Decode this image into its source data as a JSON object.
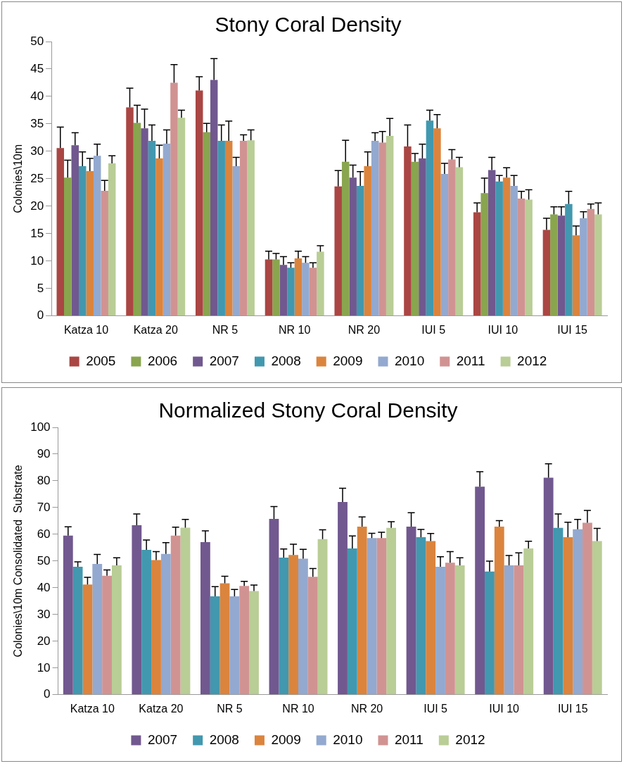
{
  "chart_data": [
    {
      "type": "bar",
      "title": "Stony Coral Density",
      "ylabel": "Colonies\\10m",
      "categories": [
        "Katza 10",
        "Katza 20",
        "NR 5",
        "NR 10",
        "NR 20",
        "IUI 5",
        "IUI 10",
        "IUI 15"
      ],
      "ylim": [
        0,
        50
      ],
      "yticks": [
        0,
        5,
        10,
        15,
        20,
        25,
        30,
        35,
        40,
        45,
        50
      ],
      "grid": false,
      "legend": "bottom",
      "series": [
        {
          "name": "2005",
          "color": "#aa4643",
          "values": [
            30.6,
            38.0,
            41.1,
            10.3,
            23.6,
            30.9,
            18.9,
            15.7
          ],
          "errors": [
            [
              30.6,
              34.4
            ],
            [
              38.0,
              41.5
            ],
            [
              41.1,
              43.6
            ],
            [
              10.3,
              11.8
            ],
            [
              23.6,
              26.5
            ],
            [
              30.9,
              34.8
            ],
            [
              18.9,
              20.6
            ],
            [
              15.7,
              17.8
            ]
          ]
        },
        {
          "name": "2006",
          "color": "#89a54e",
          "values": [
            25.2,
            35.2,
            33.5,
            10.3,
            28.1,
            28.1,
            22.4,
            18.5
          ],
          "errors": [
            [
              25.2,
              28.4
            ],
            [
              35.2,
              38.4
            ],
            [
              33.5,
              35.1
            ],
            [
              10.3,
              11.4
            ],
            [
              28.1,
              32.0
            ],
            [
              28.1,
              29.6
            ],
            [
              22.4,
              25.1
            ],
            [
              18.5,
              19.9
            ]
          ]
        },
        {
          "name": "2007",
          "color": "#71588f",
          "values": [
            31.1,
            34.2,
            43.0,
            9.3,
            25.2,
            28.7,
            26.6,
            18.3
          ],
          "errors": [
            [
              31.1,
              33.4
            ],
            [
              34.2,
              37.7
            ],
            [
              43.0,
              46.9
            ],
            [
              9.3,
              10.8
            ],
            [
              25.2,
              27.5
            ],
            [
              28.7,
              31.3
            ],
            [
              26.6,
              28.9
            ],
            [
              18.3,
              19.9
            ]
          ]
        },
        {
          "name": "2008",
          "color": "#4198af",
          "values": [
            27.3,
            31.9,
            31.9,
            8.8,
            23.7,
            35.6,
            24.5,
            20.4
          ],
          "errors": [
            [
              27.3,
              29.9
            ],
            [
              31.9,
              34.8
            ],
            [
              31.9,
              34.8
            ],
            [
              8.8,
              9.7
            ],
            [
              23.7,
              26.3
            ],
            [
              35.6,
              37.5
            ],
            [
              24.5,
              25.6
            ],
            [
              20.4,
              22.7
            ]
          ]
        },
        {
          "name": "2009",
          "color": "#db843d",
          "values": [
            26.4,
            28.7,
            31.9,
            10.5,
            27.3,
            34.2,
            25.2,
            14.7
          ],
          "errors": [
            [
              26.4,
              28.7
            ],
            [
              28.7,
              31.1
            ],
            [
              31.9,
              35.5
            ],
            [
              10.5,
              11.8
            ],
            [
              27.3,
              29.9
            ],
            [
              34.2,
              36.7
            ],
            [
              25.2,
              27.0
            ],
            [
              14.7,
              16.4
            ]
          ]
        },
        {
          "name": "2010",
          "color": "#93a9cf",
          "values": [
            29.2,
            31.4,
            27.3,
            9.7,
            31.9,
            25.9,
            23.7,
            17.8
          ],
          "errors": [
            [
              29.2,
              31.3
            ],
            [
              31.4,
              33.9
            ],
            [
              27.3,
              28.9
            ],
            [
              9.7,
              10.8
            ],
            [
              31.9,
              33.4
            ],
            [
              25.9,
              27.8
            ],
            [
              23.7,
              25.6
            ],
            [
              17.8,
              19.0
            ]
          ]
        },
        {
          "name": "2011",
          "color": "#d19392",
          "values": [
            22.8,
            42.5,
            31.9,
            8.8,
            31.6,
            28.5,
            21.4,
            19.5
          ],
          "errors": [
            [
              22.8,
              24.7
            ],
            [
              42.5,
              45.8
            ],
            [
              31.9,
              33.0
            ],
            [
              8.8,
              9.7
            ],
            [
              31.6,
              33.6
            ],
            [
              28.5,
              30.3
            ],
            [
              21.4,
              22.7
            ],
            [
              19.5,
              20.4
            ]
          ]
        },
        {
          "name": "2012",
          "color": "#b9cd96",
          "values": [
            27.8,
            36.1,
            32.0,
            11.7,
            32.8,
            27.1,
            21.2,
            18.5
          ],
          "errors": [
            [
              27.8,
              29.2
            ],
            [
              36.1,
              37.5
            ],
            [
              32.0,
              33.9
            ],
            [
              11.7,
              12.8
            ],
            [
              32.8,
              36.0
            ],
            [
              27.1,
              28.9
            ],
            [
              21.2,
              23.0
            ],
            [
              18.5,
              20.6
            ]
          ]
        }
      ]
    },
    {
      "type": "bar",
      "title": "Normalized Stony Coral Density",
      "ylabel": "Colonies\\10m Consolidated  Substrate",
      "categories": [
        "Katza 10",
        "Katza 20",
        "NR 5",
        "NR 10",
        "NR 20",
        "IUI 5",
        "IUI 10",
        "IUI 15"
      ],
      "ylim": [
        0,
        100
      ],
      "yticks": [
        0,
        10,
        20,
        30,
        40,
        50,
        60,
        70,
        80,
        90,
        100
      ],
      "grid": false,
      "legend": "bottom",
      "series": [
        {
          "name": "2007",
          "color": "#71588f",
          "values": [
            59.5,
            63.4,
            57.1,
            65.8,
            72.1,
            62.9,
            77.8,
            81.2
          ],
          "errors": [
            [
              59.5,
              62.8
            ],
            [
              63.4,
              67.6
            ],
            [
              57.1,
              61.3
            ],
            [
              65.8,
              70.4
            ],
            [
              72.1,
              77.2
            ],
            [
              62.9,
              68.1
            ],
            [
              77.8,
              83.4
            ],
            [
              81.2,
              86.4
            ]
          ]
        },
        {
          "name": "2008",
          "color": "#4198af",
          "values": [
            47.9,
            54.2,
            36.8,
            51.3,
            54.7,
            58.9,
            46.1,
            62.4
          ],
          "errors": [
            [
              47.9,
              49.7
            ],
            [
              54.2,
              57.9
            ],
            [
              36.8,
              40.4
            ],
            [
              51.3,
              54.5
            ],
            [
              54.7,
              59.4
            ],
            [
              58.9,
              61.8
            ],
            [
              46.1,
              50.0
            ],
            [
              62.4,
              67.6
            ]
          ]
        },
        {
          "name": "2009",
          "color": "#db843d",
          "values": [
            41.2,
            50.4,
            41.7,
            52.3,
            62.9,
            57.5,
            62.9,
            58.9
          ],
          "errors": [
            [
              41.2,
              43.9
            ],
            [
              50.4,
              53.5
            ],
            [
              41.7,
              44.3
            ],
            [
              52.3,
              56.3
            ],
            [
              62.9,
              66.5
            ],
            [
              57.5,
              60.3
            ],
            [
              62.9,
              65.1
            ],
            [
              58.9,
              64.5
            ]
          ]
        },
        {
          "name": "2010",
          "color": "#93a9cf",
          "values": [
            48.9,
            52.7,
            36.8,
            50.9,
            58.6,
            47.9,
            48.4,
            61.9
          ],
          "errors": [
            [
              48.9,
              52.5
            ],
            [
              52.7,
              56.9
            ],
            [
              36.8,
              39.4
            ],
            [
              50.9,
              54.4
            ],
            [
              58.6,
              60.4
            ],
            [
              47.9,
              51.6
            ],
            [
              48.4,
              52.1
            ],
            [
              61.9,
              65.6
            ]
          ]
        },
        {
          "name": "2011",
          "color": "#d19392",
          "values": [
            44.5,
            59.5,
            40.7,
            44.1,
            58.6,
            49.4,
            48.4,
            64.3
          ],
          "errors": [
            [
              44.5,
              46.7
            ],
            [
              59.5,
              62.7
            ],
            [
              40.7,
              42.4
            ],
            [
              44.1,
              47.2
            ],
            [
              58.6,
              60.8
            ],
            [
              49.4,
              53.5
            ],
            [
              48.4,
              53.1
            ],
            [
              64.3,
              68.9
            ]
          ]
        },
        {
          "name": "2012",
          "color": "#b9cd96",
          "values": [
            48.4,
            62.5,
            38.8,
            58.2,
            62.4,
            48.4,
            54.7,
            57.5
          ],
          "errors": [
            [
              48.4,
              51.2
            ],
            [
              62.5,
              65.6
            ],
            [
              38.8,
              41.0
            ],
            [
              58.2,
              61.7
            ],
            [
              62.4,
              64.7
            ],
            [
              48.4,
              51.2
            ],
            [
              54.7,
              57.4
            ],
            [
              57.5,
              62.2
            ]
          ]
        }
      ]
    }
  ]
}
